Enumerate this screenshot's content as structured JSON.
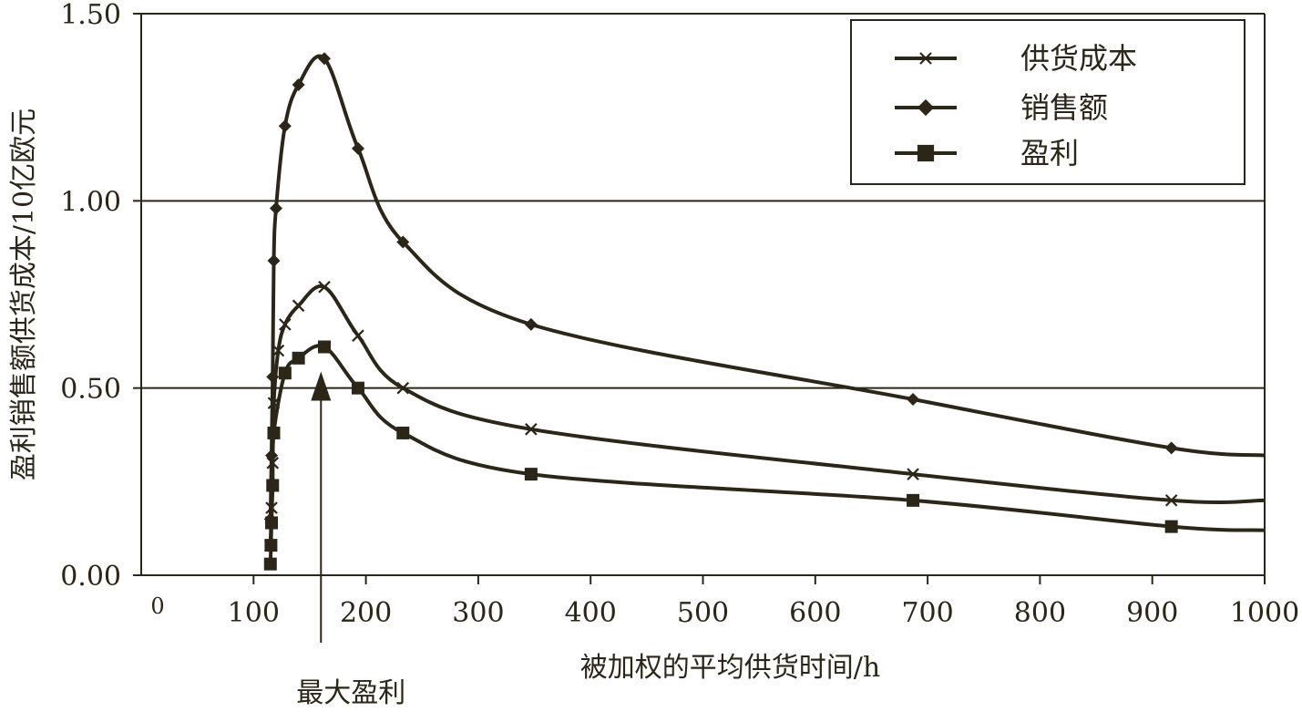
{
  "chart_data": {
    "type": "line",
    "xlabel": "被加权的平均供货时间/h",
    "ylabel": "盈利销售额供货成本/10亿欧元",
    "xlim": [
      0,
      1000
    ],
    "ylim": [
      0,
      1.5
    ],
    "x_ticks": [
      "0",
      "100",
      "200",
      "300",
      "400",
      "500",
      "600",
      "700",
      "800",
      "900",
      "1000"
    ],
    "y_ticks": [
      "0.00",
      "0.50",
      "1.00",
      "1.50"
    ],
    "grid": "horizontal",
    "legend_position": "top-right",
    "annotation": {
      "label": "最大盈利",
      "x": 160,
      "y": 0.52
    },
    "series": [
      {
        "name": "供货成本",
        "marker": "x",
        "x": [
          115,
          116,
          117,
          118,
          122,
          128,
          140,
          163,
          193,
          233,
          347,
          687,
          917,
          1000
        ],
        "y": [
          0.08,
          0.18,
          0.3,
          0.46,
          0.6,
          0.67,
          0.72,
          0.77,
          0.64,
          0.5,
          0.39,
          0.27,
          0.2,
          0.2
        ]
      },
      {
        "name": "销售额",
        "marker": "diamond",
        "x": [
          115,
          116,
          117,
          118,
          120,
          128,
          140,
          163,
          193,
          233,
          347,
          687,
          917,
          1000
        ],
        "y": [
          0.15,
          0.32,
          0.53,
          0.84,
          0.98,
          1.2,
          1.31,
          1.38,
          1.14,
          0.89,
          0.67,
          0.47,
          0.34,
          0.32
        ]
      },
      {
        "name": "盈利",
        "marker": "square",
        "x": [
          115,
          115.5,
          116,
          117,
          118,
          128,
          140,
          163,
          193,
          233,
          347,
          687,
          917,
          1000
        ],
        "y": [
          0.03,
          0.08,
          0.14,
          0.24,
          0.38,
          0.54,
          0.58,
          0.61,
          0.5,
          0.38,
          0.27,
          0.2,
          0.13,
          0.12
        ]
      }
    ],
    "colors": {
      "line": "#2b2618",
      "grid": "#2b2618",
      "axis": "#2b2618",
      "background": "#ffffff"
    }
  }
}
